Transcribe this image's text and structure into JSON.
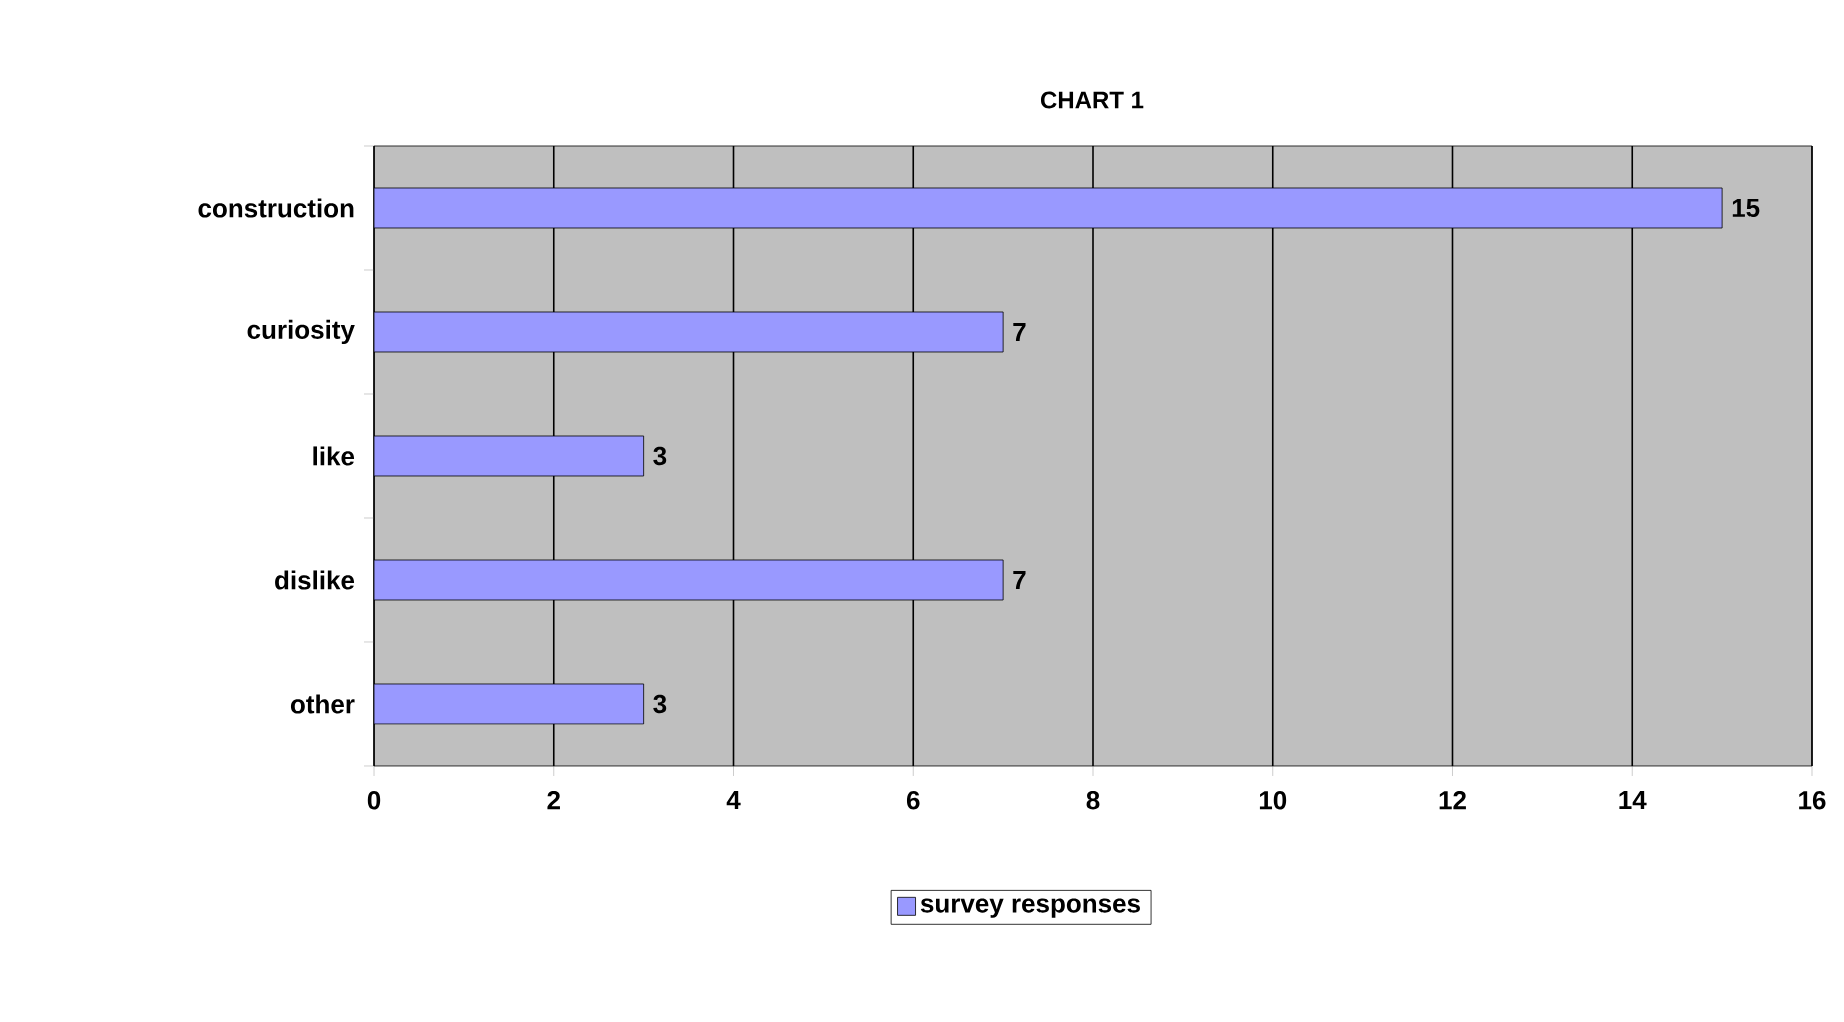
{
  "chart_data": {
    "type": "bar",
    "orientation": "horizontal",
    "title": "CHART 1",
    "categories": [
      "construction",
      "curiosity",
      "like",
      "dislike",
      "other"
    ],
    "series": [
      {
        "name": "survey responses",
        "color": "#9999ff",
        "values": [
          15,
          7,
          3,
          7,
          3
        ]
      }
    ],
    "xlim": [
      0,
      16
    ],
    "xticks": [
      0,
      2,
      4,
      6,
      8,
      10,
      12,
      14,
      16
    ],
    "grid": "x",
    "legend": "bottom",
    "data_labels": true
  }
}
